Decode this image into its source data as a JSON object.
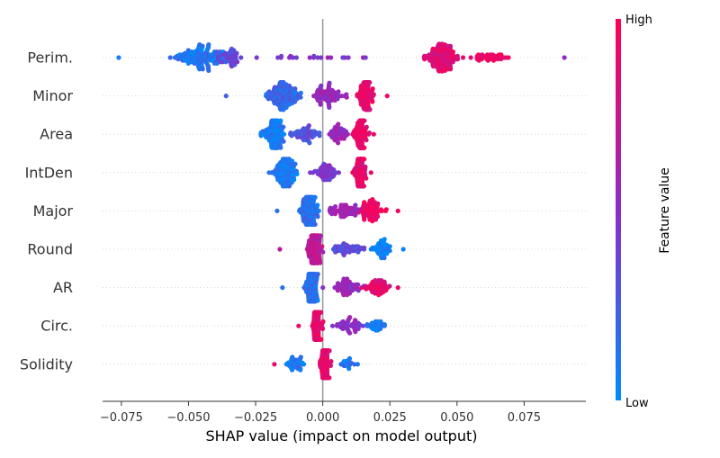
{
  "chart_data": {
    "type": "scatter",
    "xlabel": "SHAP value (impact on model output)",
    "xlim": [
      -0.082,
      0.098
    ],
    "x_ticks": [
      "−0.075",
      "−0.050",
      "−0.025",
      "0.000",
      "0.025",
      "0.050",
      "0.075"
    ],
    "x_tick_values": [
      -0.075,
      -0.05,
      -0.025,
      0.0,
      0.025,
      0.05,
      0.075
    ],
    "colorbar": {
      "title": "Feature value",
      "high_label": "High",
      "low_label": "Low",
      "low_color": "#008bfb",
      "mid_color": "#8c2cc6",
      "high_color": "#ff0052"
    },
    "features": [
      {
        "name": "Perim.",
        "low_center": -0.046,
        "high_center": 0.044,
        "min": -0.076,
        "max": 0.09,
        "clusters": [
          {
            "x": -0.046,
            "spread": 0.012,
            "color": 0.1,
            "n": 140
          },
          {
            "x": -0.035,
            "spread": 0.008,
            "color": 0.35,
            "n": 60
          },
          {
            "x": 0.044,
            "spread": 0.008,
            "color": 0.85,
            "n": 150
          },
          {
            "x": 0.06,
            "spread": 0.012,
            "color": 0.95,
            "n": 40
          },
          {
            "x": -0.005,
            "spread": 0.03,
            "color": 0.5,
            "n": 20
          }
        ]
      },
      {
        "name": "Minor",
        "min": -0.036,
        "max": 0.024,
        "clusters": [
          {
            "x": -0.015,
            "spread": 0.008,
            "color": 0.2,
            "n": 150
          },
          {
            "x": 0.002,
            "spread": 0.007,
            "color": 0.55,
            "n": 80
          },
          {
            "x": 0.016,
            "spread": 0.004,
            "color": 0.9,
            "n": 130
          }
        ]
      },
      {
        "name": "Area",
        "min": -0.023,
        "max": 0.019,
        "clusters": [
          {
            "x": -0.018,
            "spread": 0.005,
            "color": 0.08,
            "n": 140
          },
          {
            "x": -0.006,
            "spread": 0.007,
            "color": 0.3,
            "n": 60
          },
          {
            "x": 0.006,
            "spread": 0.005,
            "color": 0.55,
            "n": 50
          },
          {
            "x": 0.014,
            "spread": 0.003,
            "color": 0.92,
            "n": 130
          }
        ]
      },
      {
        "name": "IntDen",
        "min": -0.02,
        "max": 0.018,
        "clusters": [
          {
            "x": -0.014,
            "spread": 0.006,
            "color": 0.1,
            "n": 140
          },
          {
            "x": 0.001,
            "spread": 0.006,
            "color": 0.45,
            "n": 60
          },
          {
            "x": 0.014,
            "spread": 0.003,
            "color": 0.9,
            "n": 130
          }
        ]
      },
      {
        "name": "Major",
        "min": -0.017,
        "max": 0.028,
        "clusters": [
          {
            "x": -0.005,
            "spread": 0.004,
            "color": 0.15,
            "n": 190
          },
          {
            "x": 0.008,
            "spread": 0.008,
            "color": 0.6,
            "n": 60
          },
          {
            "x": 0.018,
            "spread": 0.006,
            "color": 0.92,
            "n": 80
          }
        ]
      },
      {
        "name": "Round",
        "min": -0.016,
        "max": 0.03,
        "clusters": [
          {
            "x": -0.003,
            "spread": 0.003,
            "color": 0.7,
            "n": 200
          },
          {
            "x": 0.01,
            "spread": 0.008,
            "color": 0.3,
            "n": 50
          },
          {
            "x": 0.022,
            "spread": 0.006,
            "color": 0.05,
            "n": 50
          }
        ]
      },
      {
        "name": "AR",
        "min": -0.015,
        "max": 0.028,
        "clusters": [
          {
            "x": -0.004,
            "spread": 0.003,
            "color": 0.15,
            "n": 200
          },
          {
            "x": 0.009,
            "spread": 0.008,
            "color": 0.55,
            "n": 60
          },
          {
            "x": 0.02,
            "spread": 0.006,
            "color": 0.9,
            "n": 60
          }
        ]
      },
      {
        "name": "Circ.",
        "min": -0.009,
        "max": 0.023,
        "clusters": [
          {
            "x": -0.002,
            "spread": 0.002,
            "color": 0.9,
            "n": 220
          },
          {
            "x": 0.01,
            "spread": 0.007,
            "color": 0.5,
            "n": 50
          },
          {
            "x": 0.02,
            "spread": 0.004,
            "color": 0.1,
            "n": 30
          }
        ]
      },
      {
        "name": "Solidity",
        "min": -0.018,
        "max": 0.013,
        "clusters": [
          {
            "x": 0.001,
            "spread": 0.0025,
            "color": 0.9,
            "n": 250
          },
          {
            "x": -0.01,
            "spread": 0.005,
            "color": 0.1,
            "n": 40
          },
          {
            "x": 0.009,
            "spread": 0.003,
            "color": 0.1,
            "n": 20
          }
        ]
      }
    ]
  }
}
